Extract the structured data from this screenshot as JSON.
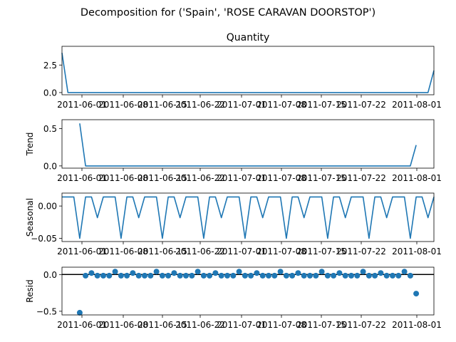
{
  "figure": {
    "suptitle": "Decomposition for ('Spain', 'ROSE CARAVAN DOORSTOP')"
  },
  "colors": {
    "series": "#1f77b4",
    "axis": "#000000",
    "zero_line": "#000000"
  },
  "chart_data": [
    {
      "type": "line",
      "title": "Quantity",
      "ylabel": "",
      "xlim": [
        "2011-06-01",
        "2011-08-03"
      ],
      "ylim": [
        -0.2,
        4.2
      ],
      "yticks": [
        0.0,
        2.5
      ],
      "ytick_labels": [
        "0.0",
        "2.5"
      ],
      "xtick_labels": [
        "2011-06-01",
        "2011-06-08",
        "2011-06-15",
        "2011-06-22",
        "2011-07-01",
        "2011-07-08",
        "2011-07-15",
        "2011-07-22",
        "2011-08-01"
      ],
      "x": [
        "2011-06-01",
        "2011-06-02",
        "2011-08-02",
        "2011-08-03"
      ],
      "y": [
        3.6,
        0.0,
        0.0,
        2.0
      ]
    },
    {
      "type": "line",
      "title": "",
      "ylabel": "Trend",
      "xlim": [
        "2011-06-01",
        "2011-08-03"
      ],
      "ylim": [
        -0.03,
        0.62
      ],
      "yticks": [
        0.0,
        0.5
      ],
      "ytick_labels": [
        "0.0",
        "0.5"
      ],
      "xtick_labels": [
        "2011-06-01",
        "2011-06-08",
        "2011-06-15",
        "2011-06-22",
        "2011-07-01",
        "2011-07-08",
        "2011-07-15",
        "2011-07-22",
        "2011-08-01"
      ],
      "x": [
        "2011-06-04",
        "2011-06-05",
        "2011-07-30",
        "2011-07-31"
      ],
      "y": [
        0.57,
        0.0,
        0.0,
        0.28
      ]
    },
    {
      "type": "line",
      "title": "",
      "ylabel": "Seasonal",
      "xlim": [
        "2011-06-01",
        "2011-08-03"
      ],
      "ylim": [
        -0.055,
        0.02
      ],
      "yticks": [
        -0.05,
        0.0
      ],
      "ytick_labels": [
        "−0.05",
        "0.00"
      ],
      "xtick_labels": [
        "2011-06-01",
        "2011-06-08",
        "2011-06-15",
        "2011-06-22",
        "2011-07-01",
        "2011-07-08",
        "2011-07-15",
        "2011-07-22",
        "2011-08-01"
      ],
      "start": "2011-06-01",
      "end": "2011-08-03",
      "pattern": [
        0.014,
        0.014,
        0.014,
        -0.05,
        0.014,
        0.014,
        -0.018
      ]
    },
    {
      "type": "scatter",
      "title": "",
      "ylabel": "Resid",
      "xlim": [
        "2011-06-01",
        "2011-08-03"
      ],
      "ylim": [
        -0.55,
        0.1
      ],
      "yticks": [
        -0.5,
        0.0
      ],
      "ytick_labels": [
        "−0.5",
        "0.0"
      ],
      "xtick_labels": [
        "2011-06-01",
        "2011-06-08",
        "2011-06-15",
        "2011-06-22",
        "2011-07-01",
        "2011-07-08",
        "2011-07-15",
        "2011-07-22",
        "2011-08-01"
      ],
      "zero_line": true,
      "start": "2011-06-04",
      "end": "2011-07-31",
      "pattern": [
        -0.015,
        -0.015,
        0.02,
        -0.015,
        -0.015,
        -0.015,
        0.04
      ],
      "overrides": [
        {
          "x": "2011-06-04",
          "y": -0.52
        },
        {
          "x": "2011-07-31",
          "y": -0.26
        }
      ]
    }
  ]
}
